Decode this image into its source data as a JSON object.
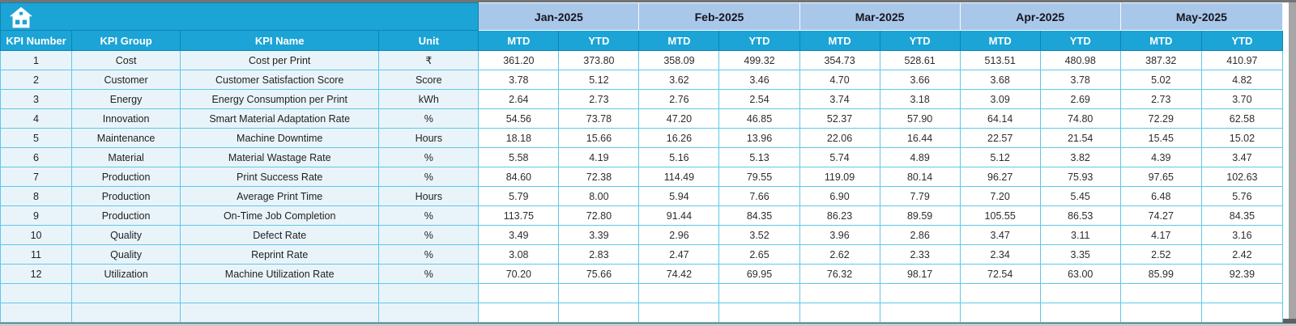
{
  "icons": {
    "home": "house"
  },
  "colors": {
    "header_cyan": "#1ba4d5",
    "header_cyan_border": "#0e84b2",
    "month_band_blue": "#a9c7e9",
    "meta_cell_blue": "#e9f4fa",
    "grid_teal": "#5fc8e6",
    "month_text": "#15151f",
    "header_text": "#ffffff",
    "cell_text": "#2d2d2d",
    "window_edge_gray": "#5d6165"
  },
  "header": {
    "columns": [
      "KPI Number",
      "KPI Group",
      "KPI Name",
      "Unit"
    ],
    "months": [
      "Jan-2025",
      "Feb-2025",
      "Mar-2025",
      "Apr-2025",
      "May-2025"
    ],
    "sub_columns": [
      "MTD",
      "YTD"
    ]
  },
  "table": {
    "empty_row_count": 2,
    "rows": [
      {
        "number": "1",
        "group": "Cost",
        "name": "Cost per Print",
        "unit": "₹",
        "values": [
          "361.20",
          "373.80",
          "358.09",
          "499.32",
          "354.73",
          "528.61",
          "513.51",
          "480.98",
          "387.32",
          "410.97"
        ]
      },
      {
        "number": "2",
        "group": "Customer",
        "name": "Customer Satisfaction Score",
        "unit": "Score",
        "values": [
          "3.78",
          "5.12",
          "3.62",
          "3.46",
          "4.70",
          "3.66",
          "3.68",
          "3.78",
          "5.02",
          "4.82"
        ]
      },
      {
        "number": "3",
        "group": "Energy",
        "name": "Energy Consumption per Print",
        "unit": "kWh",
        "values": [
          "2.64",
          "2.73",
          "2.76",
          "2.54",
          "3.74",
          "3.18",
          "3.09",
          "2.69",
          "2.73",
          "3.70"
        ]
      },
      {
        "number": "4",
        "group": "Innovation",
        "name": "Smart Material Adaptation Rate",
        "unit": "%",
        "values": [
          "54.56",
          "73.78",
          "47.20",
          "46.85",
          "52.37",
          "57.90",
          "64.14",
          "74.80",
          "72.29",
          "62.58"
        ]
      },
      {
        "number": "5",
        "group": "Maintenance",
        "name": "Machine Downtime",
        "unit": "Hours",
        "values": [
          "18.18",
          "15.66",
          "16.26",
          "13.96",
          "22.06",
          "16.44",
          "22.57",
          "21.54",
          "15.45",
          "15.02"
        ]
      },
      {
        "number": "6",
        "group": "Material",
        "name": "Material Wastage Rate",
        "unit": "%",
        "values": [
          "5.58",
          "4.19",
          "5.16",
          "5.13",
          "5.74",
          "4.89",
          "5.12",
          "3.82",
          "4.39",
          "3.47"
        ]
      },
      {
        "number": "7",
        "group": "Production",
        "name": "Print Success Rate",
        "unit": "%",
        "values": [
          "84.60",
          "72.38",
          "114.49",
          "79.55",
          "119.09",
          "80.14",
          "96.27",
          "75.93",
          "97.65",
          "102.63"
        ]
      },
      {
        "number": "8",
        "group": "Production",
        "name": "Average Print Time",
        "unit": "Hours",
        "values": [
          "5.79",
          "8.00",
          "5.94",
          "7.66",
          "6.90",
          "7.79",
          "7.20",
          "5.45",
          "6.48",
          "5.76"
        ]
      },
      {
        "number": "9",
        "group": "Production",
        "name": "On-Time Job Completion",
        "unit": "%",
        "values": [
          "113.75",
          "72.80",
          "91.44",
          "84.35",
          "86.23",
          "89.59",
          "105.55",
          "86.53",
          "74.27",
          "84.35"
        ]
      },
      {
        "number": "10",
        "group": "Quality",
        "name": "Defect Rate",
        "unit": "%",
        "values": [
          "3.49",
          "3.39",
          "2.96",
          "3.52",
          "3.96",
          "2.86",
          "3.47",
          "3.11",
          "4.17",
          "3.16"
        ]
      },
      {
        "number": "11",
        "group": "Quality",
        "name": "Reprint Rate",
        "unit": "%",
        "values": [
          "3.08",
          "2.83",
          "2.47",
          "2.65",
          "2.62",
          "2.33",
          "2.34",
          "3.35",
          "2.52",
          "2.42"
        ]
      },
      {
        "number": "12",
        "group": "Utilization",
        "name": "Machine Utilization Rate",
        "unit": "%",
        "values": [
          "70.20",
          "75.66",
          "74.42",
          "69.95",
          "76.32",
          "98.17",
          "72.54",
          "63.00",
          "85.99",
          "92.39"
        ]
      }
    ]
  }
}
